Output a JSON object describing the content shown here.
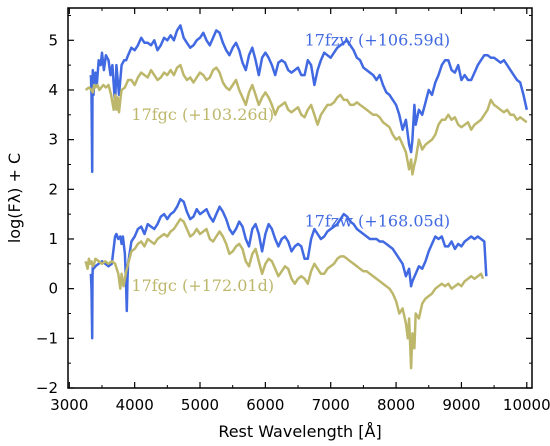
{
  "chart_data": {
    "type": "line",
    "title": "",
    "xlabel": "Rest Wavelength [Å]",
    "ylabel": "log(Fλ) + C",
    "xlim": [
      2980,
      10080
    ],
    "ylim": [
      -2.0,
      5.65
    ],
    "xticks": [
      3000,
      4000,
      5000,
      6000,
      7000,
      8000,
      9000,
      10000
    ],
    "yticks": [
      -2,
      -1,
      0,
      1,
      2,
      3,
      4,
      5
    ],
    "grid": false,
    "legend": "none",
    "colors": {
      "blue": "#4169E1",
      "olive": "#BDB76B"
    },
    "annotations": [
      {
        "text": "17fzw (+106.59d)",
        "color": "#4169E1",
        "x": 6600,
        "y": 4.9
      },
      {
        "text": "17fgc (+103.26d)",
        "color": "#BDB76B",
        "x": 3950,
        "y": 3.4
      },
      {
        "text": "17fzw (+168.05d)",
        "color": "#4169E1",
        "x": 6600,
        "y": 1.25
      },
      {
        "text": "17fgc (+172.01d)",
        "color": "#BDB76B",
        "x": 3950,
        "y": -0.05
      }
    ],
    "series": [
      {
        "color": "#4169E1",
        "x": [
          3330,
          3340,
          3350,
          3355,
          3360,
          3370,
          3380,
          3400,
          3420,
          3450,
          3480,
          3500,
          3530,
          3560,
          3600,
          3630,
          3660,
          3700,
          3720,
          3760,
          3800,
          3840,
          3870,
          3900,
          3950,
          4000,
          4050,
          4100,
          4150,
          4200,
          4250,
          4300,
          4350,
          4400,
          4450,
          4500,
          4550,
          4600,
          4650,
          4700,
          4750,
          4800,
          4850,
          4900,
          4950,
          5000,
          5050,
          5100,
          5150,
          5200,
          5250,
          5300,
          5350,
          5400,
          5450,
          5500,
          5550,
          5600,
          5650,
          5700,
          5750,
          5800,
          5850,
          5900,
          5950,
          6000,
          6050,
          6100,
          6150,
          6200,
          6250,
          6300,
          6350,
          6400,
          6450,
          6500,
          6550,
          6600,
          6650,
          6700,
          6750,
          6800,
          6850,
          6900,
          6950,
          7000,
          7050,
          7100,
          7150,
          7200,
          7250,
          7300,
          7350,
          7400,
          7450,
          7500,
          7550,
          7600,
          7650,
          7700,
          7750,
          7800,
          7850,
          7900,
          7950,
          8000,
          8050,
          8100,
          8150,
          8200,
          8230,
          8250,
          8280,
          8300,
          8350,
          8400,
          8450,
          8500,
          8550,
          8600,
          8650,
          8700,
          8750,
          8800,
          8850,
          8900,
          8950,
          9000,
          9050,
          9100,
          9150,
          9200,
          9250,
          9300,
          9350,
          9400,
          9450,
          9500,
          9550,
          9600,
          9650,
          9700,
          9750,
          9800,
          9850,
          9900,
          9950,
          10000
        ],
        "y": [
          4.3,
          3.9,
          2.35,
          4.0,
          4.4,
          3.9,
          4.2,
          4.35,
          4.1,
          4.6,
          4.5,
          4.75,
          4.4,
          4.7,
          4.6,
          4.3,
          4.5,
          3.7,
          4.5,
          3.9,
          4.5,
          4.6,
          4.6,
          4.7,
          4.85,
          4.8,
          4.9,
          5.05,
          4.95,
          4.95,
          4.9,
          5.0,
          4.8,
          4.9,
          5.05,
          5.0,
          5.1,
          5.0,
          5.2,
          5.3,
          5.05,
          4.95,
          4.85,
          4.9,
          5.0,
          5.05,
          5.15,
          5.0,
          4.9,
          5.05,
          5.2,
          5.15,
          4.95,
          4.8,
          4.7,
          4.85,
          4.95,
          4.8,
          4.55,
          4.4,
          4.7,
          4.85,
          4.6,
          4.3,
          4.65,
          4.75,
          4.65,
          4.5,
          4.3,
          4.55,
          4.6,
          4.55,
          4.4,
          4.35,
          4.4,
          4.45,
          4.3,
          4.3,
          4.6,
          4.5,
          4.1,
          4.4,
          4.6,
          4.75,
          4.7,
          4.65,
          4.75,
          4.85,
          4.9,
          4.95,
          5.0,
          4.9,
          4.8,
          4.65,
          4.6,
          4.45,
          4.4,
          4.35,
          4.3,
          4.2,
          4.3,
          4.1,
          3.95,
          3.9,
          3.8,
          3.7,
          3.5,
          3.2,
          3.4,
          2.9,
          2.75,
          3.0,
          3.7,
          3.3,
          3.6,
          3.5,
          3.75,
          4.0,
          3.9,
          4.15,
          4.3,
          4.5,
          4.6,
          4.6,
          4.4,
          4.35,
          4.5,
          4.2,
          4.3,
          4.2,
          4.2,
          4.35,
          4.5,
          4.6,
          4.7,
          4.7,
          4.65,
          4.65,
          4.6,
          4.55,
          4.6,
          4.5,
          4.4,
          4.3,
          4.2,
          4.15,
          3.9,
          3.6
        ]
      },
      {
        "color": "#BDB76B",
        "x": [
          3250,
          3300,
          3340,
          3360,
          3380,
          3400,
          3430,
          3460,
          3490,
          3520,
          3560,
          3600,
          3640,
          3680,
          3700,
          3720,
          3740,
          3760,
          3780,
          3800,
          3850,
          3900,
          3950,
          4000,
          4050,
          4100,
          4150,
          4200,
          4250,
          4300,
          4350,
          4400,
          4450,
          4500,
          4550,
          4600,
          4650,
          4700,
          4750,
          4800,
          4850,
          4900,
          4950,
          5000,
          5050,
          5100,
          5150,
          5200,
          5250,
          5300,
          5350,
          5400,
          5450,
          5500,
          5550,
          5600,
          5650,
          5700,
          5750,
          5800,
          5850,
          5900,
          5950,
          6000,
          6050,
          6100,
          6150,
          6200,
          6250,
          6300,
          6350,
          6400,
          6450,
          6500,
          6550,
          6600,
          6650,
          6700,
          6750,
          6800,
          6850,
          6900,
          6950,
          7000,
          7050,
          7100,
          7150,
          7200,
          7250,
          7300,
          7350,
          7400,
          7450,
          7500,
          7550,
          7600,
          7650,
          7700,
          7750,
          7800,
          7850,
          7900,
          7950,
          8000,
          8050,
          8100,
          8150,
          8200,
          8230,
          8250,
          8280,
          8300,
          8350,
          8400,
          8450,
          8500,
          8550,
          8600,
          8650,
          8700,
          8750,
          8800,
          8850,
          8900,
          8950,
          9000,
          9050,
          9100,
          9150,
          9200,
          9250,
          9300,
          9350,
          9400,
          9450,
          9500,
          9550,
          9600,
          9650,
          9700,
          9750,
          9800,
          9850,
          9900,
          9950,
          10000
        ],
        "y": [
          4.0,
          4.05,
          4.0,
          3.95,
          4.1,
          4.05,
          4.1,
          4.0,
          4.05,
          4.1,
          4.05,
          4.1,
          3.9,
          3.6,
          3.9,
          3.6,
          3.85,
          3.55,
          3.8,
          4.0,
          4.05,
          4.2,
          4.2,
          4.1,
          4.25,
          4.35,
          4.3,
          4.25,
          4.4,
          4.3,
          4.2,
          4.25,
          4.35,
          4.3,
          4.4,
          4.3,
          4.45,
          4.5,
          4.3,
          4.2,
          4.25,
          4.15,
          4.25,
          4.35,
          4.3,
          4.2,
          4.25,
          4.4,
          4.45,
          4.35,
          4.15,
          4.05,
          4.0,
          4.1,
          4.2,
          4.0,
          3.85,
          3.7,
          3.95,
          4.1,
          3.9,
          3.7,
          3.85,
          3.95,
          3.85,
          3.7,
          3.5,
          3.65,
          3.7,
          3.75,
          3.6,
          3.55,
          3.6,
          3.65,
          3.5,
          3.45,
          3.6,
          3.7,
          3.5,
          3.3,
          3.5,
          3.6,
          3.7,
          3.7,
          3.75,
          3.85,
          3.9,
          3.8,
          3.8,
          3.7,
          3.7,
          3.75,
          3.7,
          3.65,
          3.6,
          3.55,
          3.5,
          3.5,
          3.45,
          3.35,
          3.3,
          3.25,
          3.1,
          3.0,
          3.05,
          2.9,
          2.75,
          2.4,
          2.6,
          2.3,
          2.5,
          2.6,
          3.0,
          2.8,
          2.9,
          2.95,
          3.0,
          3.1,
          3.3,
          3.4,
          3.4,
          3.5,
          3.4,
          3.45,
          3.3,
          3.25,
          3.3,
          3.35,
          3.2,
          3.3,
          3.35,
          3.4,
          3.5,
          3.6,
          3.8,
          3.7,
          3.65,
          3.6,
          3.55,
          3.6,
          3.5,
          3.5,
          3.4,
          3.45,
          3.4,
          3.35
        ]
      },
      {
        "color": "#4169E1",
        "x": [
          3330,
          3340,
          3350,
          3355,
          3360,
          3370,
          3400,
          3450,
          3500,
          3550,
          3600,
          3650,
          3700,
          3720,
          3750,
          3780,
          3800,
          3820,
          3850,
          3870,
          3880,
          3890,
          3900,
          3950,
          4000,
          4050,
          4100,
          4150,
          4200,
          4250,
          4300,
          4350,
          4400,
          4450,
          4500,
          4550,
          4600,
          4650,
          4700,
          4750,
          4800,
          4850,
          4900,
          4950,
          5000,
          5050,
          5100,
          5150,
          5200,
          5250,
          5300,
          5350,
          5400,
          5450,
          5500,
          5550,
          5600,
          5650,
          5700,
          5750,
          5800,
          5850,
          5900,
          5950,
          6000,
          6050,
          6100,
          6150,
          6200,
          6250,
          6300,
          6350,
          6400,
          6450,
          6500,
          6550,
          6600,
          6650,
          6700,
          6750,
          6800,
          6850,
          6900,
          6950,
          7000,
          7050,
          7100,
          7150,
          7200,
          7250,
          7300,
          7350,
          7400,
          7450,
          7500,
          7550,
          7600,
          7650,
          7700,
          7750,
          7800,
          7850,
          7900,
          7950,
          8000,
          8050,
          8100,
          8150,
          8200,
          8230,
          8250,
          8300,
          8350,
          8400,
          8450,
          8500,
          8550,
          8600,
          8650,
          8700,
          8750,
          8800,
          8850,
          8900,
          8950,
          9000,
          9050,
          9100,
          9150,
          9200,
          9250,
          9300,
          9350,
          9380
        ],
        "y": [
          0.3,
          0.0,
          -1.0,
          0.2,
          0.5,
          0.4,
          0.45,
          0.5,
          0.55,
          0.5,
          0.45,
          0.5,
          1.05,
          1.1,
          1.0,
          1.05,
          0.9,
          1.05,
          0.7,
          0.0,
          -0.45,
          0.2,
          0.5,
          0.95,
          1.05,
          1.2,
          1.25,
          1.1,
          1.3,
          1.25,
          1.2,
          1.3,
          1.45,
          1.5,
          1.4,
          1.5,
          1.55,
          1.65,
          1.8,
          1.75,
          1.55,
          1.4,
          1.45,
          1.6,
          1.5,
          1.55,
          1.6,
          1.45,
          1.35,
          1.5,
          1.65,
          1.55,
          1.4,
          1.2,
          1.1,
          1.2,
          1.35,
          1.25,
          1.0,
          0.85,
          1.2,
          1.3,
          1.1,
          0.75,
          1.1,
          1.3,
          1.2,
          1.0,
          0.85,
          1.0,
          1.05,
          0.95,
          0.75,
          0.85,
          0.9,
          0.85,
          0.6,
          0.6,
          1.0,
          1.2,
          1.1,
          1.0,
          1.05,
          1.15,
          1.2,
          1.25,
          1.3,
          1.4,
          1.5,
          1.45,
          1.35,
          1.3,
          1.2,
          1.15,
          1.1,
          1.05,
          1.0,
          1.0,
          1.0,
          0.95,
          0.95,
          0.9,
          0.85,
          0.8,
          0.7,
          0.6,
          0.5,
          0.25,
          0.4,
          0.05,
          0.15,
          0.3,
          0.45,
          0.4,
          0.55,
          0.75,
          0.9,
          1.05,
          1.0,
          1.05,
          0.85,
          0.85,
          0.95,
          0.8,
          0.9,
          0.85,
          0.95,
          1.0,
          1.05,
          1.0,
          1.05,
          1.0,
          0.95,
          0.25
        ]
      },
      {
        "color": "#BDB76B",
        "x": [
          3250,
          3280,
          3300,
          3320,
          3340,
          3360,
          3380,
          3400,
          3450,
          3500,
          3550,
          3600,
          3650,
          3700,
          3750,
          3780,
          3800,
          3830,
          3850,
          3870,
          3900,
          3950,
          4000,
          4050,
          4100,
          4150,
          4200,
          4250,
          4300,
          4350,
          4400,
          4450,
          4500,
          4550,
          4600,
          4650,
          4700,
          4750,
          4800,
          4850,
          4900,
          4950,
          5000,
          5050,
          5100,
          5150,
          5200,
          5250,
          5300,
          5350,
          5400,
          5450,
          5500,
          5550,
          5600,
          5650,
          5700,
          5750,
          5800,
          5850,
          5900,
          5950,
          6000,
          6050,
          6100,
          6150,
          6200,
          6250,
          6300,
          6350,
          6400,
          6450,
          6500,
          6550,
          6600,
          6650,
          6700,
          6750,
          6800,
          6850,
          6900,
          6950,
          7000,
          7050,
          7100,
          7150,
          7200,
          7250,
          7300,
          7350,
          7400,
          7450,
          7500,
          7550,
          7600,
          7650,
          7700,
          7750,
          7800,
          7850,
          7900,
          7950,
          8000,
          8050,
          8100,
          8150,
          8180,
          8200,
          8230,
          8250,
          8280,
          8300,
          8350,
          8400,
          8450,
          8500,
          8550,
          8600,
          8650,
          8700,
          8750,
          8800,
          8850,
          8900,
          8950,
          9000,
          9050,
          9100,
          9150,
          9200,
          9250,
          9300,
          9330
        ],
        "y": [
          0.55,
          0.4,
          0.6,
          0.5,
          0.55,
          0.45,
          0.5,
          0.6,
          0.55,
          0.5,
          0.55,
          0.5,
          0.55,
          0.5,
          0.3,
          0.0,
          0.3,
          0.05,
          0.2,
          0.35,
          0.5,
          0.75,
          0.8,
          0.9,
          0.95,
          0.85,
          1.0,
          0.95,
          0.9,
          1.0,
          1.05,
          1.1,
          1.05,
          1.15,
          1.2,
          1.3,
          1.4,
          1.35,
          1.2,
          1.05,
          1.1,
          1.2,
          1.1,
          1.15,
          1.2,
          1.0,
          0.95,
          1.05,
          1.15,
          1.05,
          0.9,
          0.7,
          0.75,
          0.85,
          0.9,
          0.8,
          0.55,
          0.45,
          0.7,
          0.8,
          0.55,
          0.3,
          0.5,
          0.6,
          0.55,
          0.4,
          0.25,
          0.35,
          0.45,
          0.4,
          0.2,
          0.1,
          0.2,
          0.25,
          0.2,
          0.1,
          0.35,
          0.5,
          0.4,
          0.3,
          0.3,
          0.4,
          0.45,
          0.5,
          0.6,
          0.65,
          0.65,
          0.6,
          0.55,
          0.5,
          0.45,
          0.4,
          0.35,
          0.35,
          0.3,
          0.25,
          0.2,
          0.15,
          0.1,
          0.05,
          0.0,
          -0.1,
          -0.25,
          -0.5,
          -0.4,
          -0.7,
          -1.0,
          -0.6,
          -1.6,
          -0.9,
          -1.2,
          -0.5,
          -0.6,
          -0.3,
          -0.2,
          -0.15,
          -0.1,
          0.0,
          0.05,
          0.1,
          0.05,
          0.1,
          0.0,
          0.05,
          0.1,
          0.05,
          0.15,
          0.2,
          0.25,
          0.2,
          0.25,
          0.3,
          0.2
        ]
      }
    ]
  }
}
